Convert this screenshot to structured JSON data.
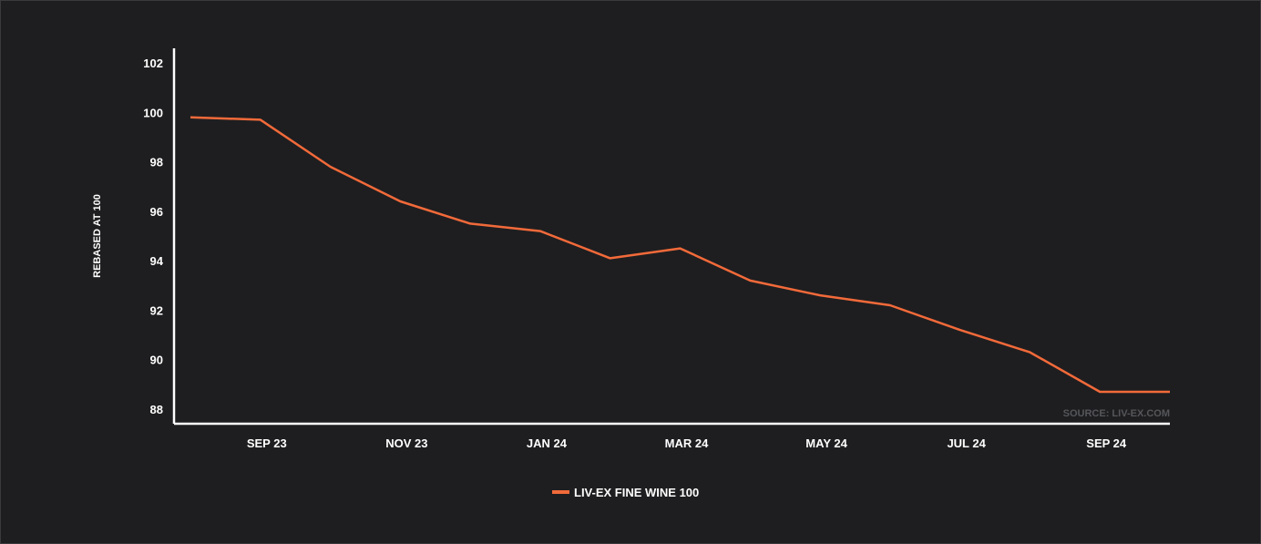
{
  "chart_data": {
    "type": "line",
    "title": "",
    "xlabel": "",
    "ylabel": "REBASED AT 100",
    "ylim": [
      88,
      102
    ],
    "y_ticks": [
      "102",
      "100",
      "98",
      "96",
      "94",
      "92",
      "90",
      "88"
    ],
    "x_ticks": [
      "SEP 23",
      "NOV 23",
      "JAN 24",
      "MAR 24",
      "MAY 24",
      "JUL 24",
      "SEP 24"
    ],
    "x": [
      "2023-08",
      "2023-09",
      "2023-10",
      "2023-11",
      "2023-12",
      "2024-01",
      "2024-02",
      "2024-03",
      "2024-04",
      "2024-05",
      "2024-06",
      "2024-07",
      "2024-08",
      "2024-09",
      "2024-10"
    ],
    "series": [
      {
        "name": "LIV-EX FINE WINE 100",
        "color": "#f26a3a",
        "values": [
          99.8,
          99.7,
          97.8,
          96.4,
          95.5,
          95.2,
          94.1,
          94.5,
          93.2,
          92.6,
          92.2,
          91.2,
          90.3,
          88.7,
          88.7
        ]
      }
    ],
    "legend": {
      "placement": "bottom-center",
      "label": "LIV-EX FINE WINE 100"
    },
    "source": "SOURCE: LIV-EX.COM",
    "grid": false,
    "axis_color": "#ffffff",
    "background": "#1e1e20"
  }
}
